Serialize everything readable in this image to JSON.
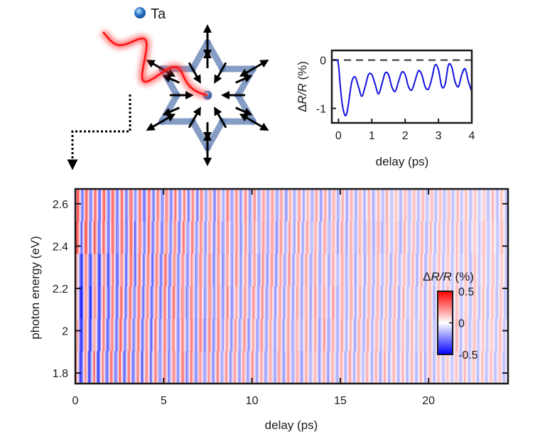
{
  "inset": {
    "legend_label": "Ta",
    "colors": {
      "star": "#7f98c2",
      "arrows": "#000000",
      "pulse": "#ff1a1a",
      "atom": "#2c79c9"
    }
  },
  "chart_data": [
    {
      "type": "line",
      "title": "",
      "xlabel": "delay (ps)",
      "ylabel_prefix": "Δ",
      "ylabel_italic": "R/R",
      "ylabel_suffix": " (%)",
      "xlim": [
        -0.2,
        4.0
      ],
      "ylim": [
        -1.3,
        0.2
      ],
      "xticks": [
        "0",
        "1",
        "2",
        "3",
        "4"
      ],
      "xtick_values": [
        0,
        1,
        2,
        3,
        4
      ],
      "yticks": [
        "0",
        "-1"
      ],
      "ytick_values": [
        0,
        -1
      ],
      "reference_line": {
        "y": 0,
        "style": "dashed",
        "color": "#555555"
      },
      "series": [
        {
          "color": "#1010e0",
          "x": [
            -0.2,
            -0.05,
            0.0,
            0.05,
            0.1,
            0.15,
            0.2,
            0.25,
            0.3,
            0.4,
            0.5,
            0.6,
            0.7,
            0.8,
            0.9,
            1.0,
            1.1,
            1.2,
            1.3,
            1.4,
            1.5,
            1.6,
            1.7,
            1.8,
            1.9,
            2.0,
            2.1,
            2.2,
            2.3,
            2.4,
            2.5,
            2.6,
            2.7,
            2.8,
            2.9,
            3.0,
            3.1,
            3.2,
            3.3,
            3.4,
            3.5,
            3.6,
            3.7,
            3.8,
            3.9,
            4.0
          ],
          "y": [
            0.0,
            0.0,
            -0.1,
            -0.5,
            -0.85,
            -1.05,
            -1.15,
            -1.1,
            -0.9,
            -0.45,
            -0.35,
            -0.55,
            -0.75,
            -0.55,
            -0.3,
            -0.3,
            -0.5,
            -0.7,
            -0.5,
            -0.27,
            -0.3,
            -0.55,
            -0.65,
            -0.45,
            -0.25,
            -0.3,
            -0.55,
            -0.62,
            -0.42,
            -0.22,
            -0.3,
            -0.55,
            -0.6,
            -0.38,
            -0.1,
            -0.2,
            -0.55,
            -0.5,
            -0.1,
            -0.15,
            -0.45,
            -0.55,
            -0.3,
            -0.18,
            -0.45,
            -0.65
          ]
        }
      ]
    },
    {
      "type": "heatmap",
      "title": "",
      "xlabel": "delay (ps)",
      "ylabel": "photon energy (eV)",
      "xlim": [
        0,
        24.5
      ],
      "ylim": [
        1.75,
        2.67
      ],
      "xticks": [
        "0",
        "5",
        "10",
        "15",
        "20"
      ],
      "xtick_values": [
        0,
        5,
        10,
        15,
        20
      ],
      "yticks": [
        "2.6",
        "2.4",
        "2.2",
        "2",
        "1.8"
      ],
      "ytick_values": [
        2.6,
        2.4,
        2.2,
        2.0,
        1.8
      ],
      "colorbar": {
        "title_prefix": "Δ",
        "title_italic": "R/R",
        "title_suffix": " (%)",
        "ticks": [
          "0.5",
          "0",
          "-0.5"
        ],
        "tick_values": [
          0.5,
          0,
          -0.5
        ],
        "range": [
          -0.5,
          0.5
        ],
        "colormap": [
          "#0000ff",
          "#ffffff",
          "#ff0000"
        ]
      },
      "oscillation_period_ps": 0.5,
      "decay_time_ps": 18
    }
  ]
}
